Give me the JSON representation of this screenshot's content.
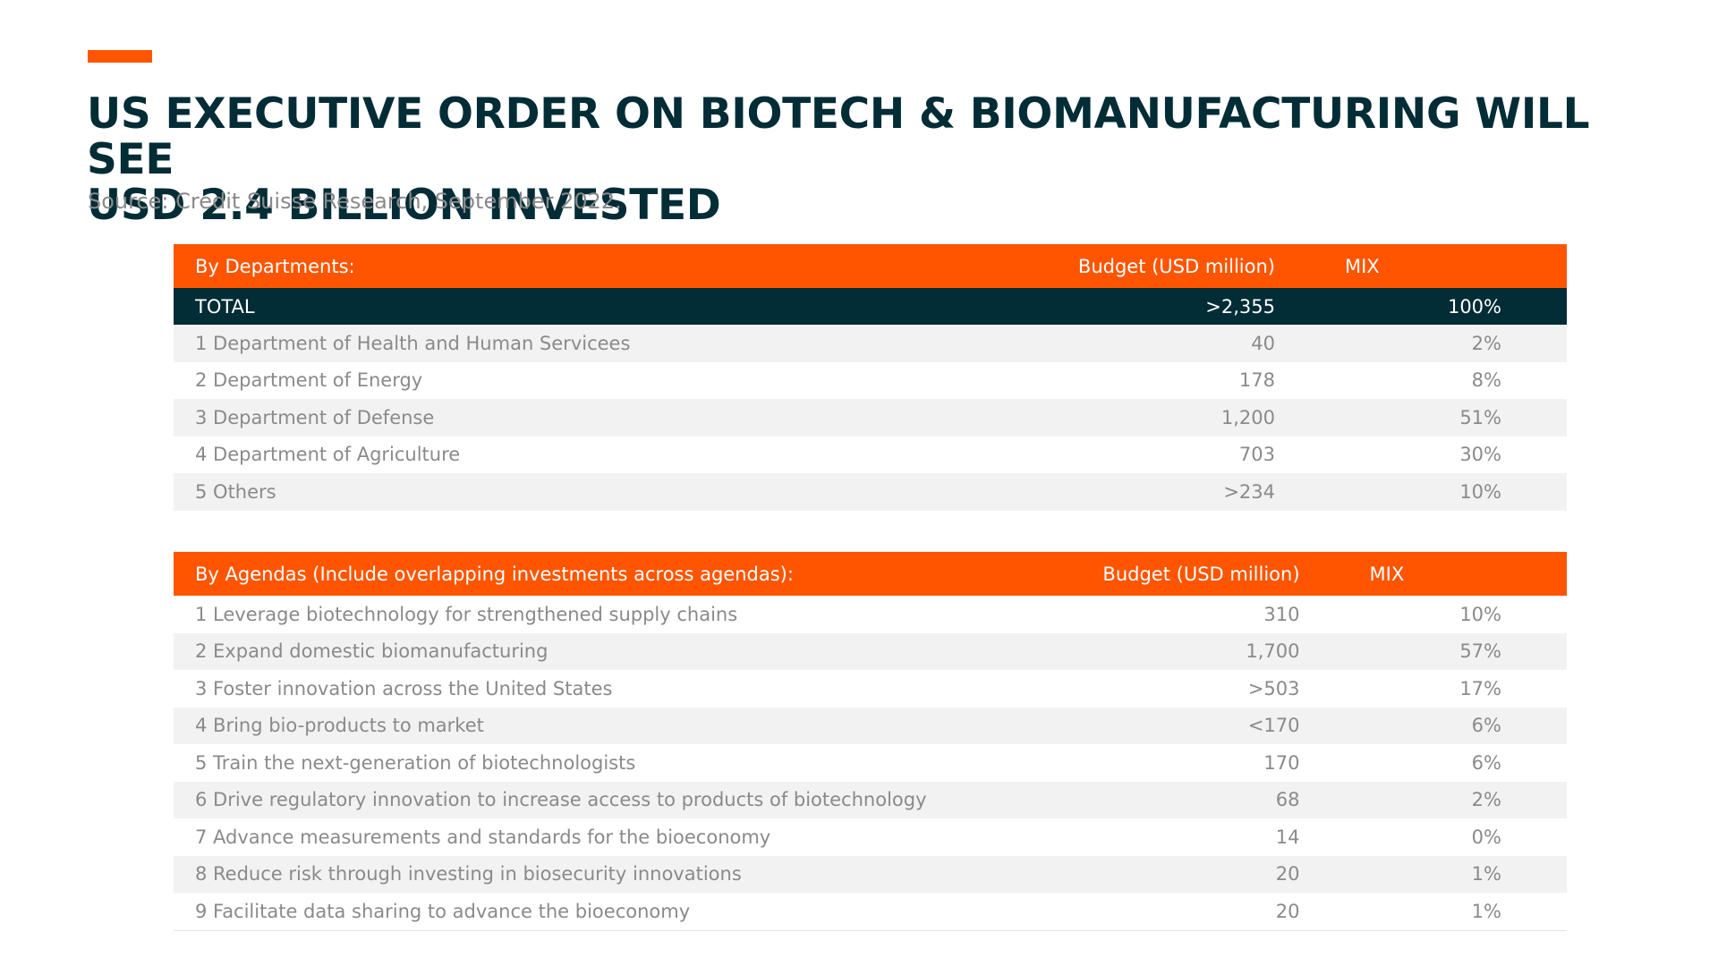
{
  "slide": {
    "title_line1": "US EXECUTIVE ORDER ON BIOTECH & BIOMANUFACTURING WILL SEE",
    "title_line2": "USD 2.4 BILLION INVESTED",
    "source": "Source: Credit Suisse Research, September 2022."
  },
  "colors": {
    "accent": "#FF5500",
    "dark": "#022C36",
    "muted_text": "#8A8A8A",
    "row_shade": "#F2F2F2"
  },
  "departments": {
    "headers": {
      "label": "By Departments:",
      "budget": "Budget (USD million)",
      "mix": "MIX"
    },
    "total": {
      "label": "TOTAL",
      "budget": ">2,355",
      "mix": "100%"
    },
    "rows": [
      {
        "label": "1 Department of Health and Human Servicees",
        "budget": "40",
        "mix": "2%"
      },
      {
        "label": "2 Department of Energy",
        "budget": "178",
        "mix": "8%"
      },
      {
        "label": "3 Department of Defense",
        "budget": "1,200",
        "mix": "51%"
      },
      {
        "label": "4 Department of Agriculture",
        "budget": "703",
        "mix": "30%"
      },
      {
        "label": "5 Others",
        "budget": ">234",
        "mix": "10%"
      }
    ]
  },
  "agendas": {
    "headers": {
      "label": "By Agendas (Include overlapping investments across agendas):",
      "budget": "Budget (USD million)",
      "mix": "MIX"
    },
    "rows": [
      {
        "label": "1 Leverage biotechnology for strengthened supply chains",
        "budget": "310",
        "mix": "10%"
      },
      {
        "label": "2 Expand domestic biomanufacturing",
        "budget": "1,700",
        "mix": "57%"
      },
      {
        "label": "3 Foster innovation across the United States",
        "budget": ">503",
        "mix": "17%"
      },
      {
        "label": "4 Bring bio-products to market",
        "budget": "<170",
        "mix": "6%"
      },
      {
        "label": "5 Train the next-generation of biotechnologists",
        "budget": "170",
        "mix": "6%"
      },
      {
        "label": "6 Drive regulatory innovation to increase access to products of biotechnology",
        "budget": "68",
        "mix": "2%"
      },
      {
        "label": "7 Advance measurements and standards for the bioeconomy",
        "budget": "14",
        "mix": "0%"
      },
      {
        "label": "8 Reduce risk through investing in biosecurity innovations",
        "budget": "20",
        "mix": "1%"
      },
      {
        "label": "9 Facilitate data sharing to advance the bioeconomy",
        "budget": "20",
        "mix": "1%"
      }
    ]
  }
}
